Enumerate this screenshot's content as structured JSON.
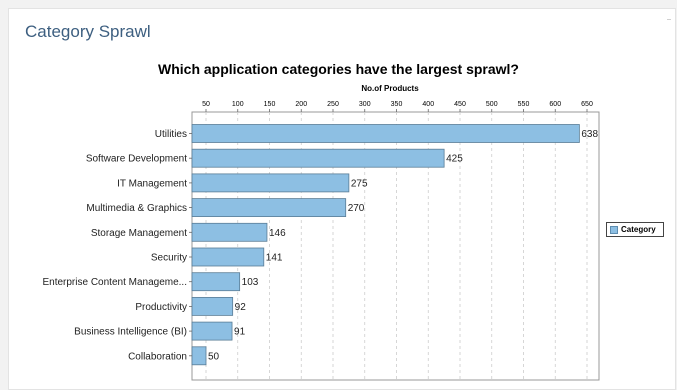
{
  "card": {
    "title": "Category Sprawl"
  },
  "chart_data": {
    "type": "bar",
    "orientation": "horizontal",
    "title": "Which application categories have the largest sprawl?",
    "xlabel": "No.of Products",
    "ylabel": "",
    "categories": [
      "Utilities",
      "Software Development",
      "IT Management",
      "Multimedia & Graphics",
      "Storage Management",
      "Security",
      "Enterprise Content Manageme...",
      "Productivity",
      "Business Intelligence (BI)",
      "Collaboration"
    ],
    "series": [
      {
        "name": "Category",
        "values": [
          638,
          425,
          275,
          270,
          146,
          141,
          103,
          92,
          91,
          50
        ],
        "color": "#8dbfe3"
      }
    ],
    "xlim": [
      0,
      650
    ],
    "xticks": [
      50,
      100,
      150,
      200,
      250,
      300,
      350,
      400,
      450,
      500,
      550,
      600,
      650
    ],
    "xaxis_position": "top",
    "grid": true,
    "legend": {
      "position": "right",
      "label": "Category"
    },
    "data_labels": true
  }
}
